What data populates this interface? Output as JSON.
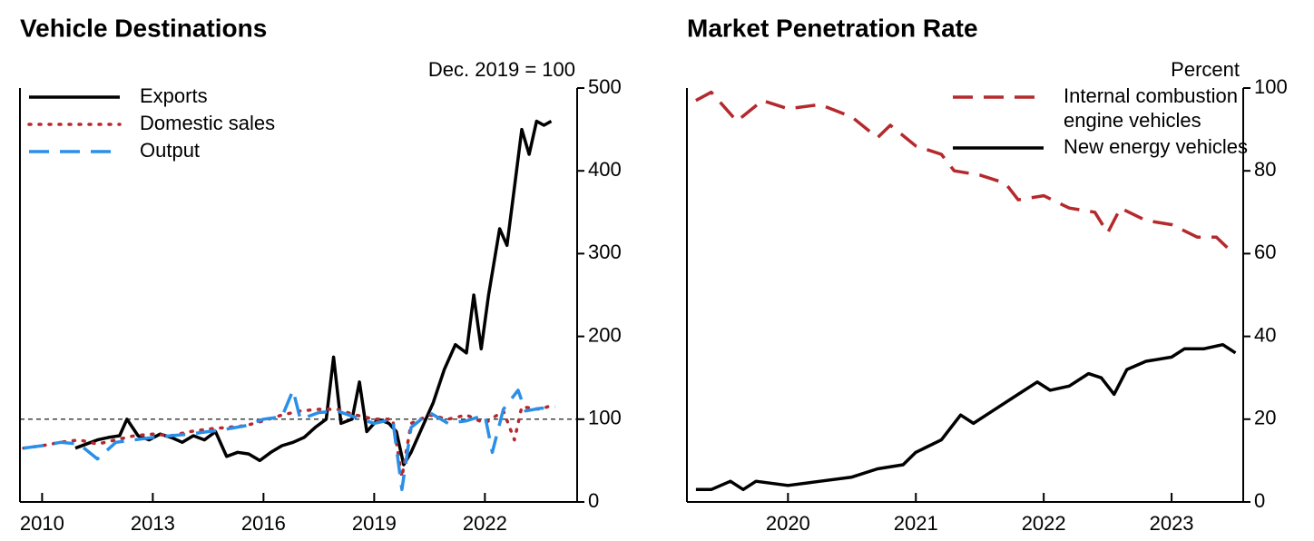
{
  "chart_data": [
    {
      "type": "line",
      "title": "Vehicle Destinations",
      "unit_label": "Dec. 2019 = 100",
      "xlim": [
        2009.4,
        2024.5
      ],
      "xticks": [
        2010,
        2013,
        2016,
        2019,
        2022
      ],
      "ylim": [
        0,
        500
      ],
      "yticks": [
        0,
        100,
        200,
        300,
        400,
        500
      ],
      "reference_line": 100,
      "legend": "upper left",
      "series": [
        {
          "name": "Exports",
          "color": "#000000",
          "style": "solid",
          "x": [
            2010.9,
            2011.2,
            2011.5,
            2011.8,
            2012.1,
            2012.3,
            2012.6,
            2012.9,
            2013.2,
            2013.5,
            2013.8,
            2014.1,
            2014.4,
            2014.7,
            2015.0,
            2015.3,
            2015.6,
            2015.9,
            2016.2,
            2016.5,
            2016.8,
            2017.1,
            2017.4,
            2017.7,
            2017.9,
            2018.1,
            2018.4,
            2018.6,
            2018.8,
            2019.1,
            2019.4,
            2019.6,
            2019.8,
            2020.0,
            2020.3,
            2020.6,
            2020.9,
            2021.2,
            2021.5,
            2021.7,
            2021.9,
            2022.1,
            2022.4,
            2022.6,
            2022.8,
            2023.0,
            2023.2,
            2023.4,
            2023.6,
            2023.8
          ],
          "values": [
            65,
            70,
            75,
            78,
            80,
            100,
            80,
            75,
            82,
            78,
            72,
            80,
            75,
            85,
            55,
            60,
            58,
            50,
            60,
            68,
            72,
            78,
            90,
            100,
            175,
            95,
            100,
            145,
            85,
            100,
            95,
            85,
            45,
            60,
            90,
            120,
            160,
            190,
            180,
            250,
            185,
            250,
            330,
            310,
            380,
            450,
            420,
            460,
            455,
            460
          ]
        },
        {
          "name": "Domestic sales",
          "color": "#b5292d",
          "style": "dotted",
          "x": [
            2009.5,
            2010.0,
            2010.5,
            2011.0,
            2011.5,
            2012.0,
            2012.5,
            2013.0,
            2013.5,
            2014.0,
            2014.5,
            2015.0,
            2015.5,
            2016.0,
            2016.5,
            2017.0,
            2017.5,
            2018.0,
            2018.5,
            2019.0,
            2019.5,
            2019.75,
            2020.0,
            2020.5,
            2021.0,
            2021.5,
            2022.0,
            2022.5,
            2022.8,
            2023.0,
            2023.5,
            2023.9
          ],
          "values": [
            65,
            68,
            72,
            75,
            70,
            75,
            80,
            82,
            80,
            85,
            88,
            90,
            92,
            98,
            105,
            110,
            112,
            112,
            105,
            100,
            100,
            30,
            95,
            105,
            100,
            105,
            95,
            110,
            75,
            115,
            112,
            118
          ]
        },
        {
          "name": "Output",
          "color": "#2a8fe8",
          "style": "dashed",
          "x": [
            2009.5,
            2010.0,
            2010.5,
            2011.0,
            2011.5,
            2012.0,
            2012.5,
            2013.0,
            2013.5,
            2014.0,
            2014.5,
            2015.0,
            2015.5,
            2016.0,
            2016.5,
            2016.8,
            2017.0,
            2017.5,
            2018.0,
            2018.5,
            2019.0,
            2019.5,
            2019.75,
            2020.0,
            2020.5,
            2021.0,
            2021.5,
            2022.0,
            2022.2,
            2022.5,
            2022.9,
            2023.1,
            2023.5,
            2023.9
          ],
          "values": [
            65,
            68,
            72,
            70,
            52,
            72,
            75,
            78,
            80,
            82,
            85,
            88,
            92,
            100,
            103,
            135,
            100,
            108,
            110,
            102,
            95,
            100,
            15,
            90,
            108,
            95,
            98,
            105,
            60,
            112,
            135,
            110,
            113,
            115
          ]
        }
      ]
    },
    {
      "type": "line",
      "title": "Market Penetration Rate",
      "unit_label": "Percent",
      "xlim": [
        2019.21,
        2023.56
      ],
      "xticks": [
        2020,
        2021,
        2022,
        2023
      ],
      "ylim": [
        0,
        100
      ],
      "yticks": [
        0,
        20,
        40,
        60,
        80,
        100
      ],
      "legend": "upper right",
      "series": [
        {
          "name": "Internal combustion engine vehicles",
          "color": "#b5292d",
          "style": "dashed",
          "x": [
            2019.28,
            2019.4,
            2019.6,
            2019.8,
            2020.0,
            2020.25,
            2020.5,
            2020.7,
            2020.8,
            2021.0,
            2021.2,
            2021.3,
            2021.5,
            2021.7,
            2021.8,
            2022.0,
            2022.2,
            2022.4,
            2022.5,
            2022.6,
            2022.8,
            2023.0,
            2023.2,
            2023.35,
            2023.45
          ],
          "values": [
            97,
            99,
            92,
            97,
            95,
            96,
            93,
            88,
            91,
            86,
            84,
            80,
            79,
            77,
            73,
            74,
            71,
            70,
            65,
            71,
            68,
            67,
            64,
            64,
            61
          ]
        },
        {
          "name": "New energy vehicles",
          "color": "#000000",
          "style": "solid",
          "x": [
            2019.28,
            2019.4,
            2019.55,
            2019.65,
            2019.75,
            2020.0,
            2020.25,
            2020.5,
            2020.7,
            2020.9,
            2021.0,
            2021.2,
            2021.35,
            2021.45,
            2021.6,
            2021.8,
            2021.95,
            2022.05,
            2022.2,
            2022.35,
            2022.45,
            2022.55,
            2022.65,
            2022.8,
            2023.0,
            2023.1,
            2023.25,
            2023.4,
            2023.5
          ],
          "values": [
            3,
            3,
            5,
            3,
            5,
            4,
            5,
            6,
            8,
            9,
            12,
            15,
            21,
            19,
            22,
            26,
            29,
            27,
            28,
            31,
            30,
            26,
            32,
            34,
            35,
            37,
            37,
            38,
            36
          ]
        }
      ]
    }
  ]
}
